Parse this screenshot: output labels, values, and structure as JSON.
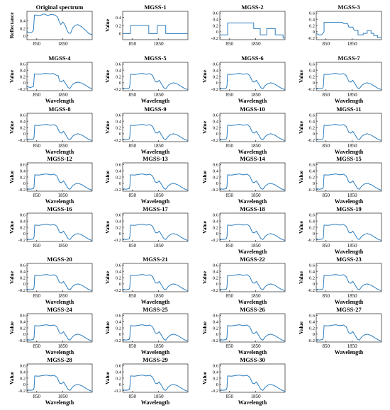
{
  "chart_data": [
    {
      "type": "line",
      "title": "Original spectrum",
      "xlabel": "",
      "ylabel": "Reflectance",
      "xticks": [
        "850",
        "1850"
      ],
      "yticks": [
        "0",
        "0.2",
        "0.4"
      ],
      "ylim": [
        -0.1,
        0.65
      ],
      "shape": "orig"
    },
    {
      "type": "line",
      "title": "MGSS-1",
      "xlabel": "",
      "ylabel": "Value",
      "xticks": [
        "850",
        "1850"
      ],
      "yticks": [
        "0",
        "0.2",
        "0.4"
      ],
      "ylim": [
        -0.15,
        0.55
      ],
      "shape": "s1"
    },
    {
      "type": "line",
      "title": "MGSS-2",
      "xlabel": "",
      "ylabel": "",
      "xticks": [
        "850",
        "1850"
      ],
      "yticks": [
        "-0.2",
        "0",
        "0.2",
        "0.4",
        "0.6"
      ],
      "ylim": [
        -0.25,
        0.65
      ],
      "shape": "s2"
    },
    {
      "type": "line",
      "title": "MGSS-3",
      "xlabel": "",
      "ylabel": "",
      "xticks": [
        "850",
        "1850"
      ],
      "yticks": [
        "-0.2",
        "0",
        "0.2",
        "0.4",
        "0.6"
      ],
      "ylim": [
        -0.25,
        0.65
      ],
      "shape": "s3"
    },
    {
      "type": "line",
      "title": "MGSS-4",
      "xlabel": "Wavelength",
      "ylabel": "Value",
      "xticks": [
        "850",
        "1850"
      ],
      "yticks": [
        "-0.2",
        "0",
        "0.2",
        "0.4",
        "0.6"
      ],
      "ylim": [
        -0.25,
        0.65
      ],
      "shape": "s4"
    },
    {
      "type": "line",
      "title": "MGSS-5",
      "xlabel": "Wavelength",
      "ylabel": "Value",
      "xticks": [
        "850",
        "1850"
      ],
      "yticks": [
        "-0.2",
        "0",
        "0.2",
        "0.4",
        "0.6"
      ],
      "ylim": [
        -0.25,
        0.65
      ],
      "shape": "smooth"
    },
    {
      "type": "line",
      "title": "MGSS-6",
      "xlabel": "Wavelength",
      "ylabel": "Value",
      "xticks": [
        "850",
        "1850"
      ],
      "yticks": [
        "-0.2",
        "0",
        "0.2",
        "0.4",
        "0.6"
      ],
      "ylim": [
        -0.25,
        0.65
      ],
      "shape": "smooth"
    },
    {
      "type": "line",
      "title": "MGSS-7",
      "xlabel": "Wavelength",
      "ylabel": "Value",
      "xticks": [
        "850",
        "1850"
      ],
      "yticks": [
        "-0.2",
        "0",
        "0.2",
        "0.4",
        "0.6"
      ],
      "ylim": [
        -0.25,
        0.65
      ],
      "shape": "smooth"
    },
    {
      "type": "line",
      "title": "MGSS-8",
      "xlabel": "Wavelength",
      "ylabel": "Value",
      "xticks": [
        "850",
        "1850"
      ],
      "yticks": [
        "-0.2",
        "0",
        "0.2",
        "0.4",
        "0.6"
      ],
      "ylim": [
        -0.25,
        0.65
      ],
      "shape": "smooth"
    },
    {
      "type": "line",
      "title": "MGSS-9",
      "xlabel": "Wavelength",
      "ylabel": "Value",
      "xticks": [
        "850",
        "1850"
      ],
      "yticks": [
        "-0.2",
        "0",
        "0.2",
        "0.4",
        "0.6"
      ],
      "ylim": [
        -0.25,
        0.65
      ],
      "shape": "smooth"
    },
    {
      "type": "line",
      "title": "MGSS-10",
      "xlabel": "Wavelength",
      "ylabel": "Value",
      "xticks": [
        "850",
        "1850"
      ],
      "yticks": [
        "-0.2",
        "0",
        "0.2",
        "0.4",
        "0.6"
      ],
      "ylim": [
        -0.25,
        0.65
      ],
      "shape": "smooth"
    },
    {
      "type": "line",
      "title": "MGSS-11",
      "xlabel": "Wavelength",
      "ylabel": "Value",
      "xticks": [
        "850",
        "1850"
      ],
      "yticks": [
        "-0.2",
        "0",
        "0.2",
        "0.4",
        "0.6"
      ],
      "ylim": [
        -0.25,
        0.65
      ],
      "shape": "smooth"
    },
    {
      "type": "line",
      "title": "MGSS-12",
      "xlabel": "Wavelength",
      "ylabel": "Value",
      "xticks": [
        "850",
        "1850"
      ],
      "yticks": [
        "-0.2",
        "0",
        "0.2",
        "0.4",
        "0.6"
      ],
      "ylim": [
        -0.25,
        0.65
      ],
      "shape": "smooth"
    },
    {
      "type": "line",
      "title": "MGSS-13",
      "xlabel": "Wavelength",
      "ylabel": "Value",
      "xticks": [
        "850",
        "1850"
      ],
      "yticks": [
        "-0.2",
        "0",
        "0.2",
        "0.4",
        "0.6"
      ],
      "ylim": [
        -0.25,
        0.65
      ],
      "shape": "smooth"
    },
    {
      "type": "line",
      "title": "MGSS-14",
      "xlabel": "Wavelength",
      "ylabel": "Value",
      "xticks": [
        "850",
        "1850"
      ],
      "yticks": [
        "-0.2",
        "0",
        "0.2",
        "0.4",
        "0.6"
      ],
      "ylim": [
        -0.25,
        0.65
      ],
      "shape": "smooth"
    },
    {
      "type": "line",
      "title": "MGSS-15",
      "xlabel": "Wavelength",
      "ylabel": "Value",
      "xticks": [
        "850",
        "1850"
      ],
      "yticks": [
        "-0.2",
        "0",
        "0.2",
        "0.4",
        "0.6"
      ],
      "ylim": [
        -0.25,
        0.65
      ],
      "shape": "smooth"
    },
    {
      "type": "line",
      "title": "MGSS-16",
      "xlabel": "",
      "ylabel": "Value",
      "xticks": [
        "850",
        "1850"
      ],
      "yticks": [
        "-0.2",
        "0",
        "0.2",
        "0.4",
        "0.6"
      ],
      "ylim": [
        -0.25,
        0.65
      ],
      "shape": "smooth"
    },
    {
      "type": "line",
      "title": "MGSS-17",
      "xlabel": "",
      "ylabel": "Value",
      "xticks": [
        "850",
        "1850"
      ],
      "yticks": [
        "-0.2",
        "0",
        "0.2",
        "0.4",
        "0.6"
      ],
      "ylim": [
        -0.25,
        0.65
      ],
      "shape": "smooth"
    },
    {
      "type": "line",
      "title": "MGSS-18",
      "xlabel": "Wavelength",
      "ylabel": "Value",
      "xticks": [
        "850",
        "1850"
      ],
      "yticks": [
        "-0.2",
        "0",
        "0.2",
        "0.4",
        "0.6"
      ],
      "ylim": [
        -0.25,
        0.65
      ],
      "shape": "smooth"
    },
    {
      "type": "line",
      "title": "MGSS-19",
      "xlabel": "Wavelength",
      "ylabel": "Value",
      "xticks": [
        "850",
        "1850"
      ],
      "yticks": [
        "-0.2",
        "0",
        "0.2",
        "0.4",
        "0.6"
      ],
      "ylim": [
        -0.25,
        0.65
      ],
      "shape": "smooth"
    },
    {
      "type": "line",
      "title": "MGSS-20",
      "xlabel": "Wavelength",
      "ylabel": "Value",
      "xticks": [
        "850",
        "1850"
      ],
      "yticks": [
        "-0.2",
        "0",
        "0.2",
        "0.4",
        "0.6"
      ],
      "ylim": [
        -0.25,
        0.65
      ],
      "shape": "smooth"
    },
    {
      "type": "line",
      "title": "MGSS-21",
      "xlabel": "Wavelength",
      "ylabel": "Value",
      "xticks": [
        "850",
        "1850"
      ],
      "yticks": [
        "-0.2",
        "0",
        "0.2",
        "0.4",
        "0.6"
      ],
      "ylim": [
        -0.25,
        0.65
      ],
      "shape": "smooth"
    },
    {
      "type": "line",
      "title": "MGSS-22",
      "xlabel": "Wavelength",
      "ylabel": "Value",
      "xticks": [
        "850",
        "1850"
      ],
      "yticks": [
        "-0.2",
        "0",
        "0.2",
        "0.4",
        "0.6"
      ],
      "ylim": [
        -0.25,
        0.65
      ],
      "shape": "smooth"
    },
    {
      "type": "line",
      "title": "MGSS-23",
      "xlabel": "Wavelength",
      "ylabel": "Value",
      "xticks": [
        "850",
        "1850"
      ],
      "yticks": [
        "-0.2",
        "0",
        "0.2",
        "0.4",
        "0.6"
      ],
      "ylim": [
        -0.25,
        0.65
      ],
      "shape": "smooth"
    },
    {
      "type": "line",
      "title": "MGSS-24",
      "xlabel": "Wavelength",
      "ylabel": "Value",
      "xticks": [
        "850",
        "1850"
      ],
      "yticks": [
        "-0.2",
        "0",
        "0.2",
        "0.4",
        "0.6"
      ],
      "ylim": [
        -0.25,
        0.65
      ],
      "shape": "smooth"
    },
    {
      "type": "line",
      "title": "MGSS-25",
      "xlabel": "Wavelength",
      "ylabel": "Value",
      "xticks": [
        "850",
        "1850"
      ],
      "yticks": [
        "-0.2",
        "0",
        "0.2",
        "0.4",
        "0.6"
      ],
      "ylim": [
        -0.25,
        0.65
      ],
      "shape": "smooth"
    },
    {
      "type": "line",
      "title": "MGSS-26",
      "xlabel": "Wavelength",
      "ylabel": "Value",
      "xticks": [
        "850",
        "1850"
      ],
      "yticks": [
        "-0.2",
        "0",
        "0.2",
        "0.4",
        "0.6"
      ],
      "ylim": [
        -0.25,
        0.65
      ],
      "shape": "smooth"
    },
    {
      "type": "line",
      "title": "MGSS-27",
      "xlabel": "Wavelength",
      "ylabel": "Value",
      "xticks": [
        "850",
        "1850"
      ],
      "yticks": [
        "-0.2",
        "0",
        "0.2",
        "0.4",
        "0.6"
      ],
      "ylim": [
        -0.25,
        0.65
      ],
      "shape": "smooth"
    },
    {
      "type": "line",
      "title": "MGSS-28",
      "xlabel": "Wavelength",
      "ylabel": "Value",
      "xticks": [
        "850",
        "1850"
      ],
      "yticks": [
        "-0.2",
        "0",
        "0.2",
        "0.4",
        "0.6"
      ],
      "ylim": [
        -0.25,
        0.65
      ],
      "shape": "smooth"
    },
    {
      "type": "line",
      "title": "MGSS-29",
      "xlabel": "Wavelength",
      "ylabel": "Value",
      "xticks": [
        "850",
        "1850"
      ],
      "yticks": [
        "-0.2",
        "0",
        "0.2",
        "0.4",
        "0.6"
      ],
      "ylim": [
        -0.25,
        0.65
      ],
      "shape": "smooth"
    },
    {
      "type": "line",
      "title": "MGSS-30",
      "xlabel": "Wavelength",
      "ylabel": "Value",
      "xticks": [
        "850",
        "1850"
      ],
      "yticks": [
        "-0.2",
        "0",
        "0.2",
        "0.4",
        "0.6"
      ],
      "ylim": [
        -0.25,
        0.65
      ],
      "shape": "smooth"
    }
  ],
  "style": {
    "line_color": "#2e7ebf",
    "axis_color": "#000000"
  }
}
